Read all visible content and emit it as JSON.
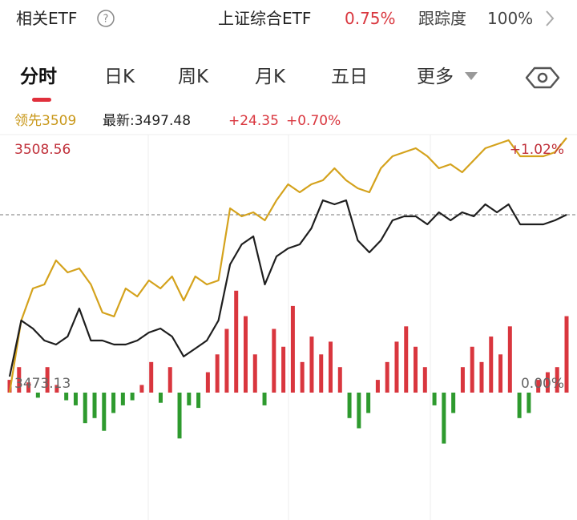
{
  "header": {
    "title": "相关ETF",
    "etf_name": "上证综合ETF",
    "etf_change": "0.75%",
    "tracking_label": "跟踪度",
    "tracking_value": "100%"
  },
  "tabs": [
    "分时",
    "日K",
    "周K",
    "月K",
    "五日",
    "更多"
  ],
  "info": {
    "lead": "领先3509",
    "latest": "最新:3497.48",
    "change": "+24.35",
    "change_pct": "+0.70%"
  },
  "chart_data": {
    "type": "line",
    "ylim": [
      3453.51,
      3508.56
    ],
    "yticks": [
      3508.56,
      3473.13
    ],
    "pct_ticks": [
      {
        "value": 3508.56,
        "label": "+1.02%"
      },
      {
        "value": 3473.13,
        "label": "0.00%"
      }
    ],
    "reference_line": 3497.48,
    "y2lim": [
      -50,
      100
    ],
    "up_color": "#d9363e",
    "down_color": "#2e9a2e",
    "series": [
      {
        "color": "#d4a21c",
        "values": [
          3471.86,
          3482.25,
          3486.86,
          3487.44,
          3490.9,
          3489.17,
          3489.75,
          3487.44,
          3483.4,
          3482.83,
          3486.86,
          3485.71,
          3488.02,
          3486.86,
          3488.6,
          3485.13,
          3488.6,
          3487.44,
          3488.02,
          3498.4,
          3497.25,
          3497.83,
          3496.67,
          3499.56,
          3501.87,
          3500.71,
          3501.87,
          3502.44,
          3504.17,
          3502.44,
          3501.29,
          3500.71,
          3504.17,
          3505.91,
          3506.48,
          3507.06,
          3505.91,
          3504.17,
          3504.75,
          3503.6,
          3505.33,
          3507.06,
          3507.64,
          3508.21,
          3505.91,
          3505.91,
          3505.91,
          3506.48,
          3508.56
        ]
      },
      {
        "color": "#1e1e1e",
        "values": [
          3474.17,
          3482.25,
          3481.09,
          3479.36,
          3478.79,
          3479.94,
          3483.98,
          3479.36,
          3479.36,
          3478.79,
          3478.79,
          3479.36,
          3480.52,
          3481.09,
          3479.94,
          3477.06,
          3478.21,
          3479.36,
          3482.25,
          3490.33,
          3493.21,
          3494.37,
          3487.44,
          3491.48,
          3492.63,
          3493.21,
          3495.52,
          3499.56,
          3498.98,
          3499.56,
          3493.79,
          3492.06,
          3493.79,
          3496.67,
          3497.25,
          3497.25,
          3496.1,
          3497.83,
          3496.67,
          3497.83,
          3497.25,
          3498.98,
          3497.83,
          3498.98,
          3496.1,
          3496.1,
          3496.1,
          3496.67,
          3497.48
        ]
      },
      {
        "type": "bar",
        "axis": "y2",
        "values": [
          5,
          10,
          4,
          -2,
          10,
          3,
          -3,
          -5,
          -12,
          -10,
          -15,
          -8,
          -5,
          -3,
          3,
          12,
          -4,
          10,
          -18,
          -5,
          -6,
          8,
          15,
          25,
          40,
          30,
          15,
          -5,
          25,
          18,
          34,
          12,
          22,
          15,
          20,
          10,
          -10,
          -14,
          -8,
          5,
          12,
          20,
          26,
          18,
          10,
          -5,
          -20,
          -8,
          10,
          18,
          12,
          22,
          15,
          26,
          -10,
          -8,
          5,
          8,
          10,
          30
        ]
      }
    ]
  }
}
